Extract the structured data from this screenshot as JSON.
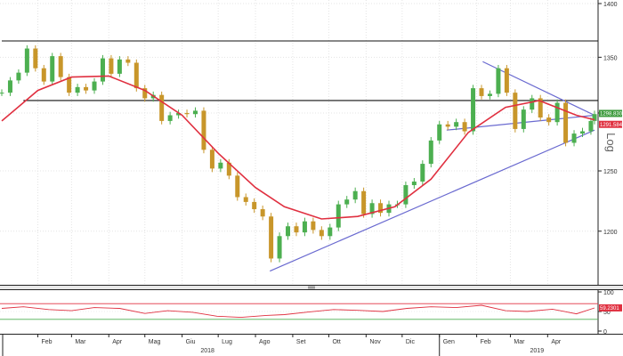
{
  "chart_data": [
    {
      "type": "candlestick",
      "scale": "log",
      "scale_label": "Log",
      "ylim": [
        1160,
        1400
      ],
      "yticks": [
        "1400",
        "1350",
        "1300",
        "1250",
        "1200"
      ],
      "xticks": [
        "Feb",
        "Mar",
        "Apr",
        "Mag",
        "Giu",
        "Lug",
        "Ago",
        "Set",
        "Ott",
        "Nov",
        "Dic",
        "Gen",
        "Feb",
        "Mar",
        "Apr"
      ],
      "years": [
        "2018",
        "2019"
      ],
      "price_tags": [
        "1298.8300",
        "1291.5840"
      ],
      "series": [
        {
          "kind": "close",
          "color": "#4caf50",
          "points": [
            [
              "2018-01-02",
              1318
            ],
            [
              "2018-01-09",
              1329
            ],
            [
              "2018-01-16",
              1336
            ],
            [
              "2018-01-23",
              1358
            ],
            [
              "2018-01-30",
              1340
            ],
            [
              "2018-02-06",
              1328
            ],
            [
              "2018-02-13",
              1351
            ],
            [
              "2018-02-20",
              1332
            ],
            [
              "2018-02-27",
              1318
            ],
            [
              "2018-03-06",
              1323
            ],
            [
              "2018-03-13",
              1320
            ],
            [
              "2018-03-20",
              1328
            ],
            [
              "2018-03-27",
              1349
            ],
            [
              "2018-04-03",
              1335
            ],
            [
              "2018-04-10",
              1348
            ],
            [
              "2018-04-17",
              1345
            ],
            [
              "2018-04-24",
              1322
            ],
            [
              "2018-05-01",
              1313
            ],
            [
              "2018-05-08",
              1316
            ],
            [
              "2018-05-15",
              1293
            ],
            [
              "2018-05-22",
              1298
            ],
            [
              "2018-05-29",
              1300
            ],
            [
              "2018-06-05",
              1299
            ],
            [
              "2018-06-12",
              1302
            ],
            [
              "2018-06-19",
              1268
            ],
            [
              "2018-06-26",
              1252
            ],
            [
              "2018-07-03",
              1257
            ],
            [
              "2018-07-10",
              1246
            ],
            [
              "2018-07-17",
              1228
            ],
            [
              "2018-07-24",
              1224
            ],
            [
              "2018-07-31",
              1218
            ],
            [
              "2018-08-07",
              1212
            ],
            [
              "2018-08-14",
              1178
            ],
            [
              "2018-08-21",
              1196
            ],
            [
              "2018-08-28",
              1204
            ],
            [
              "2018-09-04",
              1199
            ],
            [
              "2018-09-11",
              1208
            ],
            [
              "2018-09-18",
              1201
            ],
            [
              "2018-09-25",
              1196
            ],
            [
              "2018-10-02",
              1203
            ],
            [
              "2018-10-09",
              1222
            ],
            [
              "2018-10-16",
              1226
            ],
            [
              "2018-10-23",
              1233
            ],
            [
              "2018-10-30",
              1214
            ],
            [
              "2018-11-06",
              1223
            ],
            [
              "2018-11-13",
              1215
            ],
            [
              "2018-11-20",
              1222
            ],
            [
              "2018-11-27",
              1222
            ],
            [
              "2018-12-04",
              1238
            ],
            [
              "2018-12-11",
              1241
            ],
            [
              "2018-12-18",
              1256
            ],
            [
              "2018-12-25",
              1276
            ],
            [
              "2019-01-01",
              1290
            ],
            [
              "2019-01-08",
              1288
            ],
            [
              "2019-01-15",
              1292
            ],
            [
              "2019-01-22",
              1284
            ],
            [
              "2019-01-29",
              1322
            ],
            [
              "2019-02-05",
              1315
            ],
            [
              "2019-02-12",
              1317
            ],
            [
              "2019-02-19",
              1340
            ],
            [
              "2019-02-26",
              1318
            ],
            [
              "2019-03-05",
              1286
            ],
            [
              "2019-03-12",
              1303
            ],
            [
              "2019-03-19",
              1313
            ],
            [
              "2019-03-26",
              1296
            ],
            [
              "2019-04-02",
              1292
            ],
            [
              "2019-04-09",
              1309
            ],
            [
              "2019-04-16",
              1274
            ],
            [
              "2019-04-23",
              1282
            ],
            [
              "2019-04-30",
              1284
            ],
            [
              "2019-05-07",
              1293
            ],
            [
              "2019-05-10",
              1299
            ]
          ]
        },
        {
          "kind": "moving_average",
          "color": "#e03040",
          "points": [
            [
              "2018-01-02",
              1293
            ],
            [
              "2018-02-01",
              1320
            ],
            [
              "2018-03-01",
              1332
            ],
            [
              "2018-04-01",
              1333
            ],
            [
              "2018-05-01",
              1320
            ],
            [
              "2018-06-01",
              1298
            ],
            [
              "2018-07-01",
              1265
            ],
            [
              "2018-08-01",
              1236
            ],
            [
              "2018-08-25",
              1220
            ],
            [
              "2018-09-25",
              1210
            ],
            [
              "2018-10-25",
              1212
            ],
            [
              "2018-11-25",
              1220
            ],
            [
              "2018-12-25",
              1243
            ],
            [
              "2019-01-25",
              1283
            ],
            [
              "2019-02-25",
              1305
            ],
            [
              "2019-03-25",
              1311
            ],
            [
              "2019-04-25",
              1298
            ],
            [
              "2019-05-10",
              1294
            ]
          ]
        }
      ],
      "lines": [
        {
          "kind": "resistance",
          "points": [
            [
              "2018-01-02",
              1365
            ],
            [
              "2019-05-10",
              1365
            ]
          ]
        },
        {
          "kind": "resistance",
          "points": [
            [
              "2018-01-20",
              1311
            ],
            [
              "2019-05-10",
              1311
            ]
          ]
        },
        {
          "kind": "trendline",
          "points": [
            [
              "2018-08-13",
              1168
            ],
            [
              "2019-05-10",
              1285
            ]
          ]
        },
        {
          "kind": "trendline",
          "points": [
            [
              "2019-01-07",
              1285
            ],
            [
              "2019-05-10",
              1298
            ]
          ]
        },
        {
          "kind": "trendline",
          "points": [
            [
              "2019-02-06",
              1346
            ],
            [
              "2019-05-10",
              1298
            ]
          ]
        }
      ]
    },
    {
      "type": "line",
      "yticks": [
        "100",
        "50",
        "0"
      ],
      "ylim": [
        0,
        100
      ],
      "price_tag": "59.2301",
      "bands": [
        70,
        30
      ],
      "series": [
        {
          "color": "#e03040",
          "points": [
            [
              "2018-01-02",
              58
            ],
            [
              "2018-01-20",
              62
            ],
            [
              "2018-02-10",
              55
            ],
            [
              "2018-03-01",
              52
            ],
            [
              "2018-03-20",
              60
            ],
            [
              "2018-04-10",
              58
            ],
            [
              "2018-05-01",
              45
            ],
            [
              "2018-05-20",
              52
            ],
            [
              "2018-06-10",
              48
            ],
            [
              "2018-06-30",
              38
            ],
            [
              "2018-07-20",
              35
            ],
            [
              "2018-08-10",
              40
            ],
            [
              "2018-08-25",
              42
            ],
            [
              "2018-09-15",
              49
            ],
            [
              "2018-10-05",
              55
            ],
            [
              "2018-10-25",
              53
            ],
            [
              "2018-11-15",
              50
            ],
            [
              "2018-12-05",
              58
            ],
            [
              "2018-12-25",
              62
            ],
            [
              "2019-01-15",
              60
            ],
            [
              "2019-02-05",
              66
            ],
            [
              "2019-02-25",
              52
            ],
            [
              "2019-03-15",
              50
            ],
            [
              "2019-04-05",
              56
            ],
            [
              "2019-04-25",
              44
            ],
            [
              "2019-05-10",
              59
            ]
          ]
        }
      ]
    }
  ]
}
